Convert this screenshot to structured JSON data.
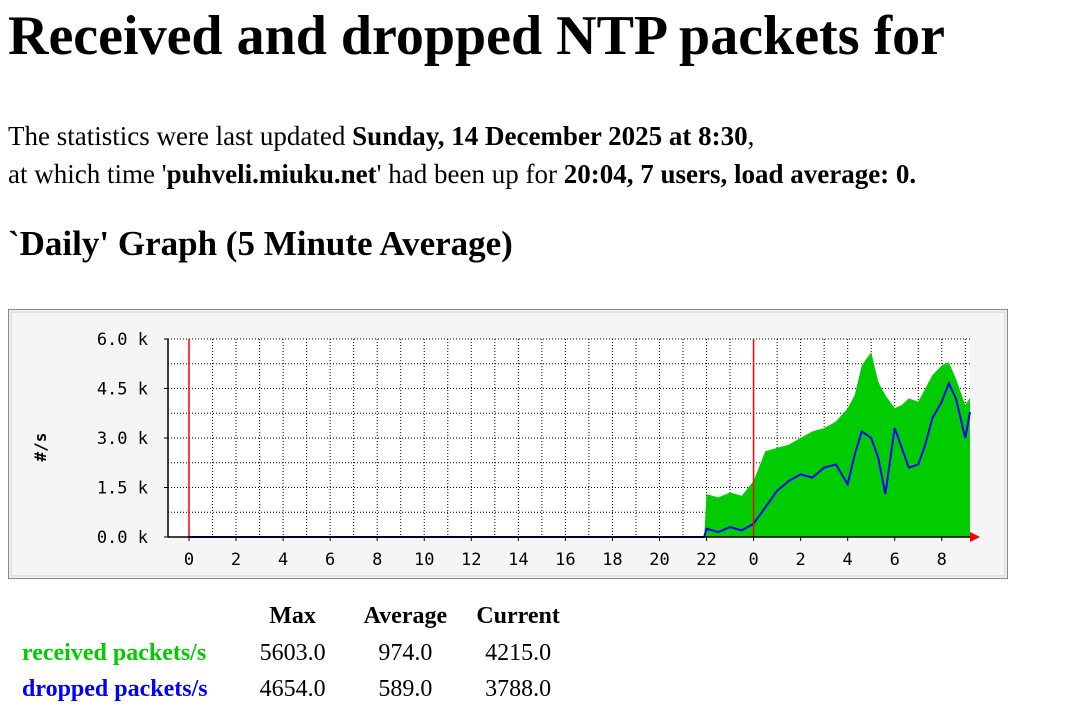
{
  "page": {
    "title": "Received and dropped NTP packets for",
    "update_prefix": "The statistics were last updated ",
    "update_time": "Sunday, 14 December 2025 at 8:30",
    "update_comma": ",",
    "uptime_prefix": "at which time '",
    "host": "puhveli.miuku.net",
    "uptime_middle": "' had been up for ",
    "uptime": "20:04, 7 users, load average: 0.",
    "graph_heading": "`Daily' Graph (5 Minute Average)"
  },
  "chart_data": {
    "type": "area",
    "title": "`Daily' Graph (5 Minute Average)",
    "xlabel": "",
    "ylabel": "#/s",
    "ylim": [
      0,
      6000
    ],
    "y_ticks": [
      "0.0 k",
      "1.5 k",
      "3.0 k",
      "4.5 k",
      "6.0 k"
    ],
    "y_tick_values": [
      0,
      1500,
      3000,
      4500,
      6000
    ],
    "x_ticks": [
      "0",
      "2",
      "4",
      "6",
      "8",
      "10",
      "12",
      "14",
      "16",
      "18",
      "20",
      "22",
      "0",
      "2",
      "4",
      "6",
      "8"
    ],
    "x_range_hours": [
      0,
      33.2
    ],
    "day_markers_hours": [
      0,
      24
    ],
    "grid": true,
    "series": [
      {
        "name": "received packets/s",
        "color": "#00cc00",
        "style": "filled-area",
        "x": [
          0,
          21.9,
          22,
          22.5,
          23,
          23.5,
          24,
          24.5,
          25,
          25.5,
          26,
          26.5,
          27,
          27.5,
          28,
          28.3,
          28.6,
          29,
          29.3,
          29.6,
          30,
          30.3,
          30.6,
          31,
          31.3,
          31.6,
          32,
          32.3,
          32.6,
          33,
          33.2
        ],
        "values": [
          0,
          0,
          1300,
          1200,
          1350,
          1250,
          1700,
          2600,
          2700,
          2800,
          3000,
          3200,
          3300,
          3500,
          3900,
          4300,
          5200,
          5600,
          4700,
          4300,
          3900,
          4000,
          4200,
          4100,
          4500,
          4900,
          5200,
          5300,
          4800,
          4000,
          4215
        ]
      },
      {
        "name": "dropped packets/s",
        "color": "#0000ff",
        "style": "line",
        "x": [
          0,
          21.9,
          22,
          22.5,
          23,
          23.5,
          24,
          24.5,
          25,
          25.5,
          26,
          26.5,
          27,
          27.5,
          28,
          28.3,
          28.6,
          29,
          29.3,
          29.6,
          30,
          30.3,
          30.6,
          31,
          31.3,
          31.6,
          32,
          32.3,
          32.6,
          33,
          33.2
        ],
        "values": [
          0,
          0,
          250,
          150,
          300,
          200,
          400,
          900,
          1400,
          1700,
          1900,
          1800,
          2100,
          2200,
          1600,
          2500,
          3200,
          3000,
          2400,
          1300,
          3300,
          2700,
          2100,
          2200,
          2800,
          3600,
          4100,
          4654,
          4200,
          3000,
          3788
        ]
      }
    ]
  },
  "legend": {
    "headers": [
      "Max",
      "Average",
      "Current"
    ],
    "rows": [
      {
        "label": "received packets/s",
        "color": "#00cc00",
        "max": "5603.0",
        "average": "974.0",
        "current": "4215.0"
      },
      {
        "label": "dropped packets/s",
        "color": "#0000ff",
        "max": "4654.0",
        "average": "589.0",
        "current": "3788.0"
      }
    ]
  }
}
